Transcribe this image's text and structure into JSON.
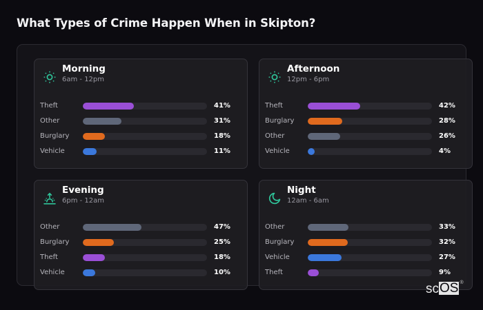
{
  "title": "What Types of Crime Happen When in Skipton?",
  "colors": {
    "background": "#0c0b10",
    "accent_icon": "#2fc49a",
    "Theft": "#9a4fd6",
    "Other": "#5f6779",
    "Burglary": "#e06a1e",
    "Vehicle": "#3b78dc",
    "track": "#2a292f"
  },
  "periods": [
    {
      "name": "Morning",
      "range": "6am - 12pm",
      "icon": "sun-icon",
      "rows": [
        {
          "label": "Theft",
          "value": 41,
          "pct": "41%"
        },
        {
          "label": "Other",
          "value": 31,
          "pct": "31%"
        },
        {
          "label": "Burglary",
          "value": 18,
          "pct": "18%"
        },
        {
          "label": "Vehicle",
          "value": 11,
          "pct": "11%"
        }
      ]
    },
    {
      "name": "Afternoon",
      "range": "12pm - 6pm",
      "icon": "sun-icon",
      "rows": [
        {
          "label": "Theft",
          "value": 42,
          "pct": "42%"
        },
        {
          "label": "Burglary",
          "value": 28,
          "pct": "28%"
        },
        {
          "label": "Other",
          "value": 26,
          "pct": "26%"
        },
        {
          "label": "Vehicle",
          "value": 4,
          "pct": "4%"
        }
      ]
    },
    {
      "name": "Evening",
      "range": "6pm - 12am",
      "icon": "sunset-icon",
      "rows": [
        {
          "label": "Other",
          "value": 47,
          "pct": "47%"
        },
        {
          "label": "Burglary",
          "value": 25,
          "pct": "25%"
        },
        {
          "label": "Theft",
          "value": 18,
          "pct": "18%"
        },
        {
          "label": "Vehicle",
          "value": 10,
          "pct": "10%"
        }
      ]
    },
    {
      "name": "Night",
      "range": "12am - 6am",
      "icon": "moon-icon",
      "rows": [
        {
          "label": "Other",
          "value": 33,
          "pct": "33%"
        },
        {
          "label": "Burglary",
          "value": 32,
          "pct": "32%"
        },
        {
          "label": "Vehicle",
          "value": 27,
          "pct": "27%"
        },
        {
          "label": "Theft",
          "value": 9,
          "pct": "9%"
        }
      ]
    }
  ],
  "logo": {
    "sc": "sc",
    "os": "OS",
    "reg": "®"
  },
  "chart_data": {
    "type": "bar",
    "orientation": "horizontal",
    "title": "What Types of Crime Happen When in Skipton?",
    "xlabel": "",
    "ylabel": "",
    "xlim": [
      0,
      100
    ],
    "unit": "%",
    "panels": [
      {
        "title": "Morning",
        "subtitle": "6am - 12pm",
        "categories": [
          "Theft",
          "Other",
          "Burglary",
          "Vehicle"
        ],
        "values": [
          41,
          31,
          18,
          11
        ]
      },
      {
        "title": "Afternoon",
        "subtitle": "12pm - 6pm",
        "categories": [
          "Theft",
          "Burglary",
          "Other",
          "Vehicle"
        ],
        "values": [
          42,
          28,
          26,
          4
        ]
      },
      {
        "title": "Evening",
        "subtitle": "6pm - 12am",
        "categories": [
          "Other",
          "Burglary",
          "Theft",
          "Vehicle"
        ],
        "values": [
          47,
          25,
          18,
          10
        ]
      },
      {
        "title": "Night",
        "subtitle": "12am - 6am",
        "categories": [
          "Other",
          "Burglary",
          "Vehicle",
          "Theft"
        ],
        "values": [
          33,
          32,
          27,
          9
        ]
      }
    ],
    "category_colors": {
      "Theft": "#9a4fd6",
      "Other": "#5f6779",
      "Burglary": "#e06a1e",
      "Vehicle": "#3b78dc"
    },
    "grid": false,
    "legend": "none"
  }
}
